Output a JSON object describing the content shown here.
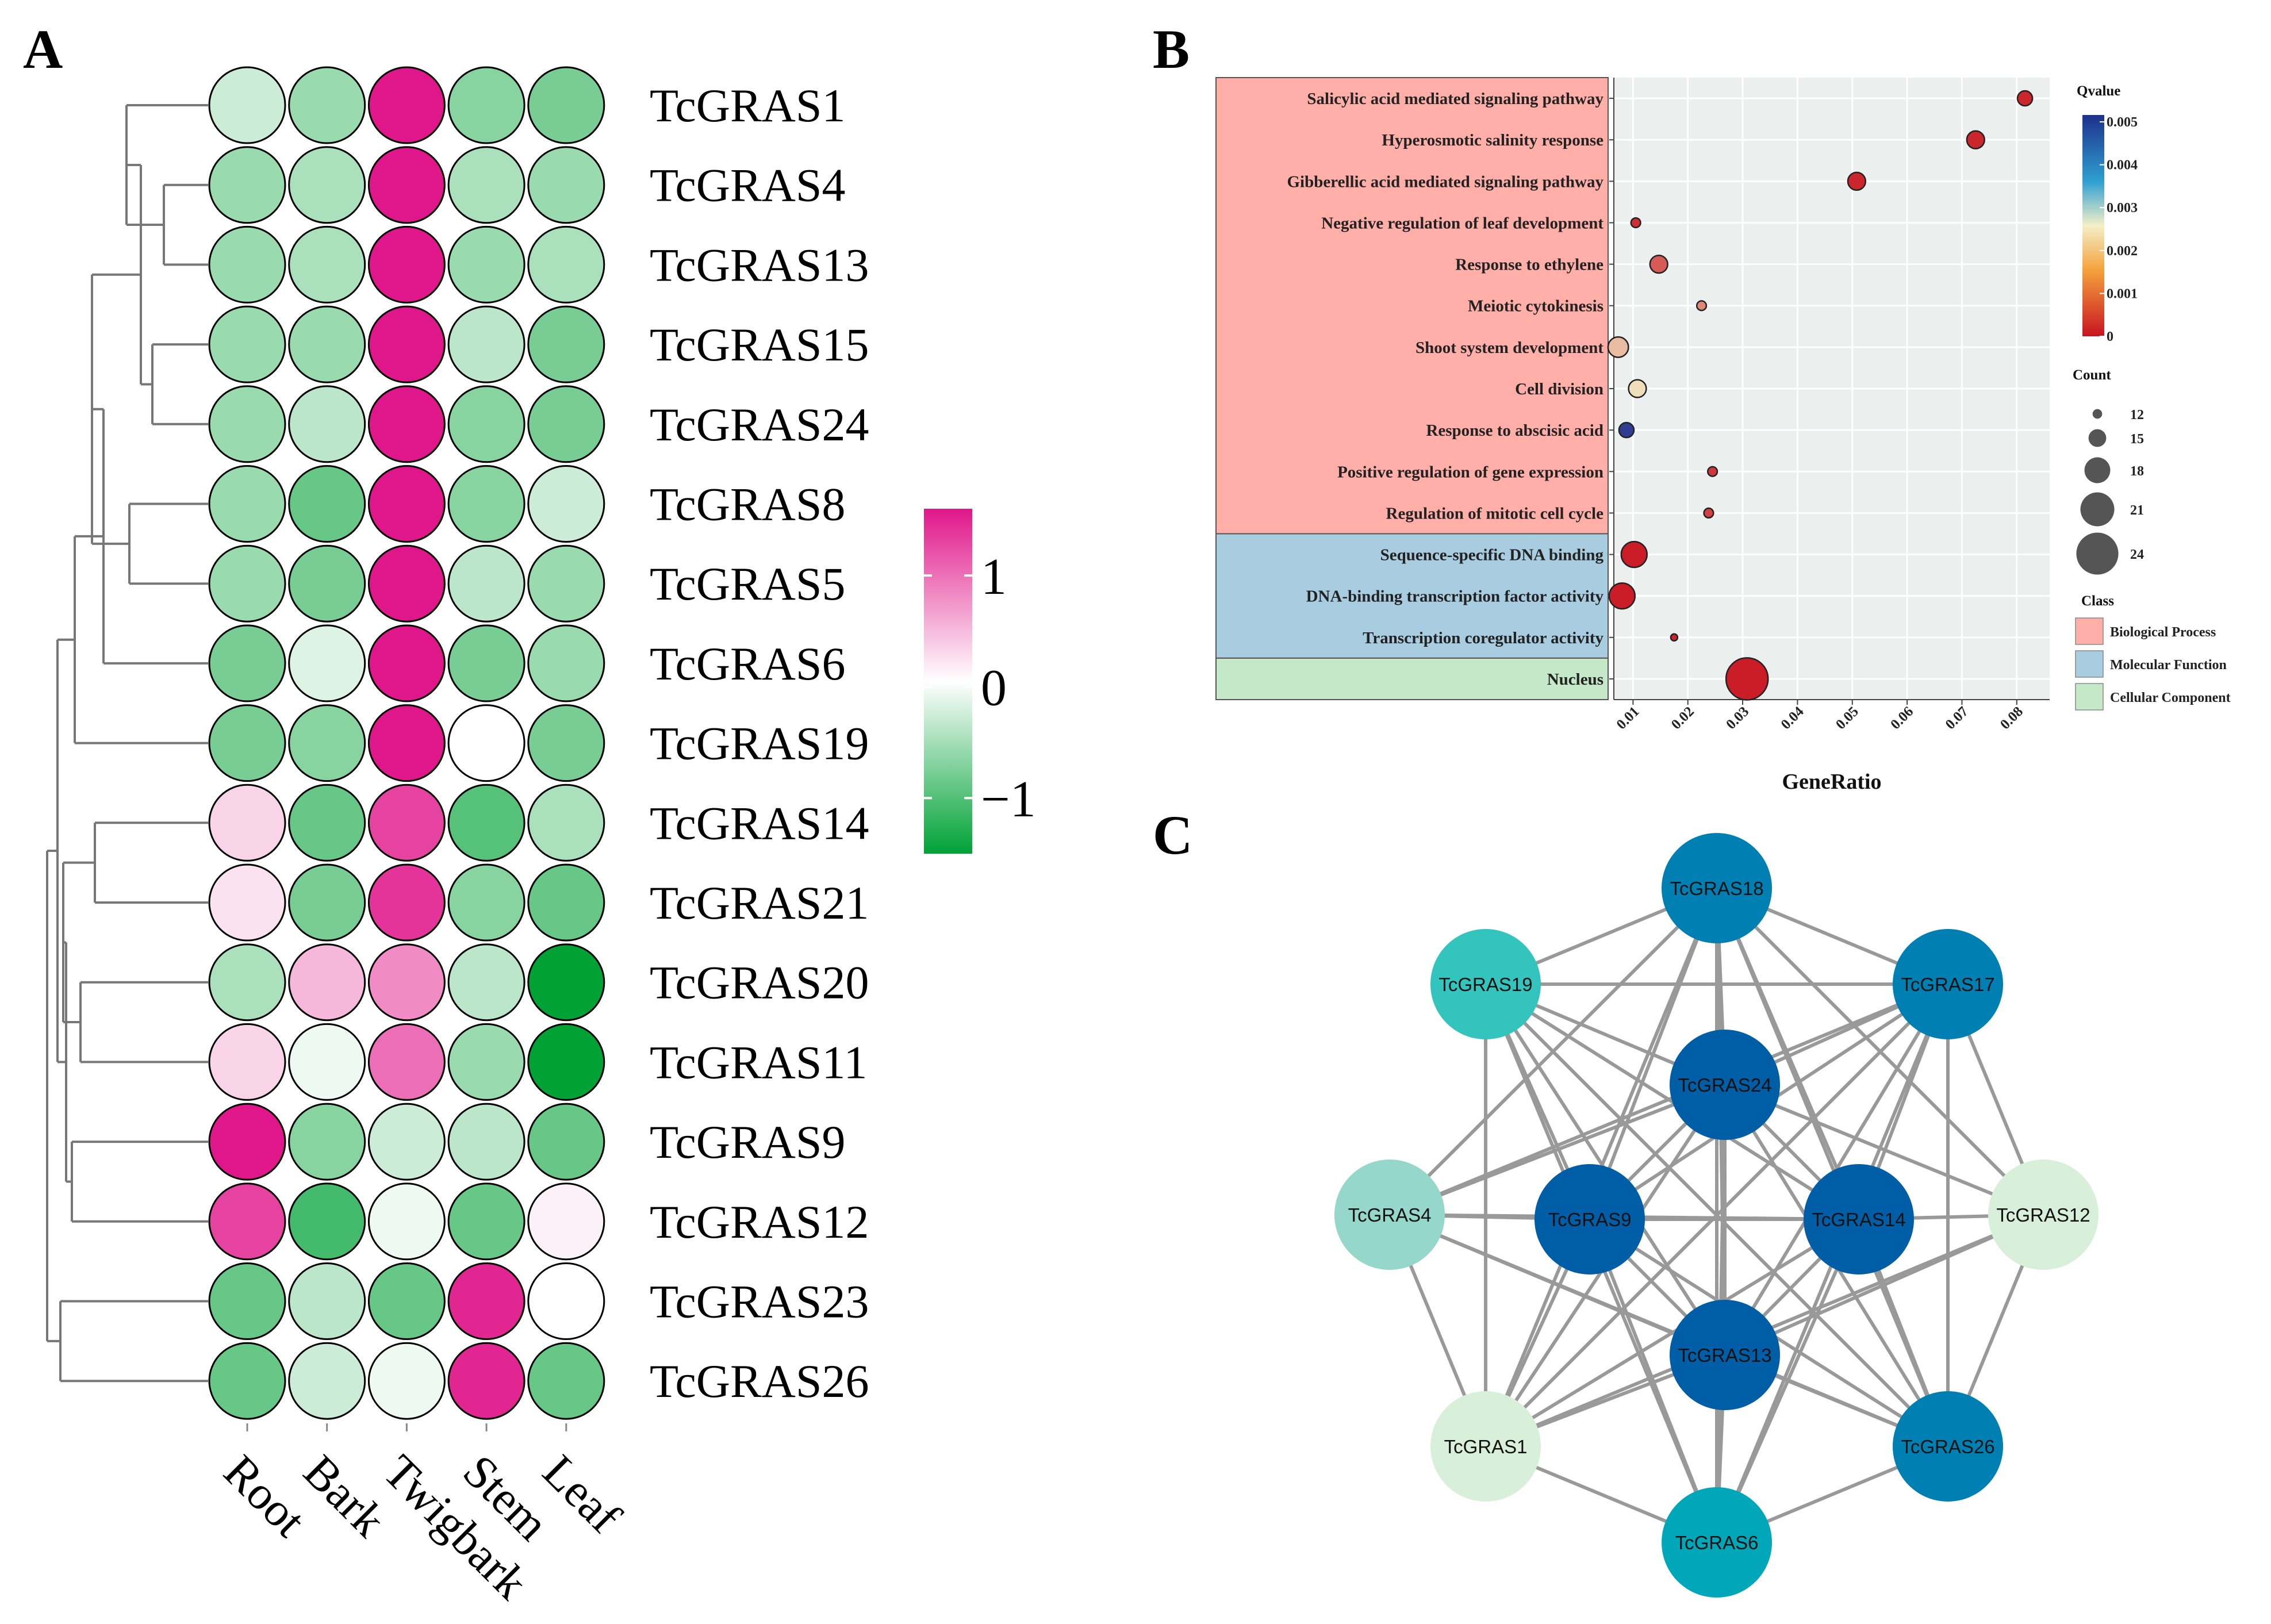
{
  "panel_labels": {
    "a": "A",
    "b": "B",
    "c": "C"
  },
  "chart_data": [
    {
      "panel": "A",
      "type": "heatmap",
      "title": "",
      "rows": [
        "TcGRAS1",
        "TcGRAS4",
        "TcGRAS13",
        "TcGRAS15",
        "TcGRAS24",
        "TcGRAS8",
        "TcGRAS5",
        "TcGRAS6",
        "TcGRAS19",
        "TcGRAS14",
        "TcGRAS21",
        "TcGRAS20",
        "TcGRAS11",
        "TcGRAS9",
        "TcGRAS12",
        "TcGRAS23",
        "TcGRAS26"
      ],
      "columns": [
        "Root",
        "Bark",
        "Twigbark",
        "Stem",
        "Leaf"
      ],
      "values": [
        [
          -0.3,
          -0.6,
          1.6,
          -0.7,
          -0.8
        ],
        [
          -0.6,
          -0.5,
          1.6,
          -0.5,
          -0.6
        ],
        [
          -0.6,
          -0.5,
          1.6,
          -0.6,
          -0.5
        ],
        [
          -0.6,
          -0.6,
          1.6,
          -0.4,
          -0.8
        ],
        [
          -0.6,
          -0.4,
          1.6,
          -0.7,
          -0.8
        ],
        [
          -0.6,
          -0.9,
          1.6,
          -0.7,
          -0.3
        ],
        [
          -0.6,
          -0.8,
          1.6,
          -0.4,
          -0.6
        ],
        [
          -0.8,
          -0.2,
          1.6,
          -0.8,
          -0.6
        ],
        [
          -0.8,
          -0.7,
          1.6,
          0.0,
          -0.8
        ],
        [
          0.3,
          -0.9,
          1.3,
          -1.0,
          -0.5
        ],
        [
          0.2,
          -0.8,
          1.4,
          -0.7,
          -0.9
        ],
        [
          -0.5,
          0.5,
          0.8,
          -0.4,
          -1.6
        ],
        [
          0.3,
          -0.1,
          1.0,
          -0.6,
          -1.6
        ],
        [
          1.6,
          -0.7,
          -0.3,
          -0.4,
          -0.9
        ],
        [
          1.3,
          -1.1,
          -0.1,
          -0.9,
          0.1
        ],
        [
          -0.9,
          -0.4,
          -0.9,
          1.5,
          0.0
        ],
        [
          -0.9,
          -0.3,
          -0.1,
          1.5,
          -0.9
        ]
      ],
      "color_scale": {
        "min": -1.5,
        "max": 1.6,
        "low_color": "#00a236",
        "mid_color": "#ffffff",
        "high_color": "#e0178a"
      },
      "scale_ticks": [
        1,
        0,
        -1
      ],
      "scale_tick_labels": [
        "1",
        "0",
        "−1"
      ],
      "dendrogram": "row clustering"
    },
    {
      "panel": "B",
      "type": "scatter",
      "title": "",
      "xlabel": "GeneRatio",
      "ylabel": "",
      "xlim": [
        0.0065,
        0.086
      ],
      "x_ticks": [
        0.01,
        0.02,
        0.03,
        0.04,
        0.05,
        0.06,
        0.07,
        0.08
      ],
      "x_tick_labels": [
        "0.01",
        "0.02",
        "0.03",
        "0.04",
        "0.05",
        "0.06",
        "0.07",
        "0.08"
      ],
      "terms": [
        {
          "term": "Salicylic acid mediated signaling pathway",
          "gene_ratio": 0.0815,
          "qvalue": 0.0002,
          "count": 14,
          "class": "Biological Process"
        },
        {
          "term": "Hyperosmotic salinity response",
          "gene_ratio": 0.0725,
          "qvalue": 0.0002,
          "count": 15,
          "class": "Biological Process"
        },
        {
          "term": "Gibberellic acid mediated signaling pathway",
          "gene_ratio": 0.0508,
          "qvalue": 0.0002,
          "count": 15,
          "class": "Biological Process"
        },
        {
          "term": "Negative regulation of leaf development",
          "gene_ratio": 0.0105,
          "qvalue": 0.0003,
          "count": 12,
          "class": "Biological Process"
        },
        {
          "term": "Response to ethylene",
          "gene_ratio": 0.0147,
          "qvalue": 0.0008,
          "count": 15,
          "class": "Biological Process"
        },
        {
          "term": "Meiotic cytokinesis",
          "gene_ratio": 0.0225,
          "qvalue": 0.0013,
          "count": 12,
          "class": "Biological Process"
        },
        {
          "term": "Shoot system development",
          "gene_ratio": 0.0073,
          "qvalue": 0.0019,
          "count": 16,
          "class": "Biological Process"
        },
        {
          "term": "Cell division",
          "gene_ratio": 0.0108,
          "qvalue": 0.0023,
          "count": 15,
          "class": "Biological Process"
        },
        {
          "term": "Response to abscisic acid",
          "gene_ratio": 0.0088,
          "qvalue": 0.0048,
          "count": 14,
          "class": "Biological Process"
        },
        {
          "term": "Positive regulation of gene expression",
          "gene_ratio": 0.0245,
          "qvalue": 0.0004,
          "count": 12,
          "class": "Biological Process"
        },
        {
          "term": "Regulation of mitotic cell cycle",
          "gene_ratio": 0.0238,
          "qvalue": 0.0005,
          "count": 12,
          "class": "Biological Process"
        },
        {
          "term": "Sequence-specific DNA binding",
          "gene_ratio": 0.0102,
          "qvalue": 0.0001,
          "count": 18,
          "class": "Molecular Function"
        },
        {
          "term": "DNA-binding transcription factor activity",
          "gene_ratio": 0.008,
          "qvalue": 0.0001,
          "count": 18,
          "class": "Molecular Function"
        },
        {
          "term": "Transcription coregulator activity",
          "gene_ratio": 0.0175,
          "qvalue": 0.0002,
          "count": 11,
          "class": "Molecular Function"
        },
        {
          "term": "Nucleus",
          "gene_ratio": 0.0308,
          "qvalue": 0.0001,
          "count": 24,
          "class": "Cellular Component"
        }
      ],
      "class_groups": [
        {
          "name": "Biological Process",
          "color": "#ffafa8",
          "first_term": 0,
          "last_term": 10
        },
        {
          "name": "Molecular Function",
          "color": "#a8cde0",
          "first_term": 11,
          "last_term": 13
        },
        {
          "name": "Cellular Component",
          "color": "#c5e8c8",
          "first_term": 14,
          "last_term": 14
        }
      ],
      "qvalue_legend": {
        "title": "Qvalue",
        "ticks": [
          0.005,
          0.004,
          0.003,
          0.002,
          0.001,
          0
        ],
        "tick_labels": [
          "0.005",
          "0.004",
          "0.003",
          "0.002",
          "0.001",
          "0"
        ],
        "low_color": "#c81420",
        "mid_color": "#f4f0c8",
        "high_color": "#1e2f8c"
      },
      "count_legend": {
        "title": "Count",
        "values": [
          12,
          15,
          18,
          21,
          24
        ],
        "labels": [
          "12",
          "15",
          "18",
          "21",
          "24"
        ]
      },
      "class_legend": {
        "title": "Class"
      },
      "background_color": "#ebf0ef"
    },
    {
      "panel": "C",
      "type": "network",
      "nodes": [
        {
          "id": "TcGRAS18",
          "color": "#0080b2"
        },
        {
          "id": "TcGRAS19",
          "color": "#33c5bd"
        },
        {
          "id": "TcGRAS17",
          "color": "#0080b2"
        },
        {
          "id": "TcGRAS24",
          "color": "#005ea7"
        },
        {
          "id": "TcGRAS4",
          "color": "#96d7cb"
        },
        {
          "id": "TcGRAS9",
          "color": "#005ea7"
        },
        {
          "id": "TcGRAS14",
          "color": "#005ea7"
        },
        {
          "id": "TcGRAS12",
          "color": "#d8efd9"
        },
        {
          "id": "TcGRAS13",
          "color": "#005ea7"
        },
        {
          "id": "TcGRAS1",
          "color": "#d8efd9"
        },
        {
          "id": "TcGRAS26",
          "color": "#0080b2"
        },
        {
          "id": "TcGRAS6",
          "color": "#00a7b8"
        }
      ],
      "edges": [
        [
          "TcGRAS18",
          "TcGRAS19"
        ],
        [
          "TcGRAS18",
          "TcGRAS17"
        ],
        [
          "TcGRAS18",
          "TcGRAS24"
        ],
        [
          "TcGRAS18",
          "TcGRAS9"
        ],
        [
          "TcGRAS18",
          "TcGRAS14"
        ],
        [
          "TcGRAS18",
          "TcGRAS13"
        ],
        [
          "TcGRAS18",
          "TcGRAS4"
        ],
        [
          "TcGRAS18",
          "TcGRAS12"
        ],
        [
          "TcGRAS18",
          "TcGRAS1"
        ],
        [
          "TcGRAS18",
          "TcGRAS26"
        ],
        [
          "TcGRAS18",
          "TcGRAS6"
        ],
        [
          "TcGRAS19",
          "TcGRAS24"
        ],
        [
          "TcGRAS19",
          "TcGRAS9"
        ],
        [
          "TcGRAS19",
          "TcGRAS14"
        ],
        [
          "TcGRAS19",
          "TcGRAS13"
        ],
        [
          "TcGRAS19",
          "TcGRAS6"
        ],
        [
          "TcGRAS19",
          "TcGRAS26"
        ],
        [
          "TcGRAS19",
          "TcGRAS17"
        ],
        [
          "TcGRAS19",
          "TcGRAS1"
        ],
        [
          "TcGRAS17",
          "TcGRAS24"
        ],
        [
          "TcGRAS17",
          "TcGRAS9"
        ],
        [
          "TcGRAS17",
          "TcGRAS14"
        ],
        [
          "TcGRAS17",
          "TcGRAS13"
        ],
        [
          "TcGRAS17",
          "TcGRAS12"
        ],
        [
          "TcGRAS17",
          "TcGRAS1"
        ],
        [
          "TcGRAS17",
          "TcGRAS6"
        ],
        [
          "TcGRAS17",
          "TcGRAS4"
        ],
        [
          "TcGRAS17",
          "TcGRAS26"
        ],
        [
          "TcGRAS24",
          "TcGRAS9"
        ],
        [
          "TcGRAS24",
          "TcGRAS14"
        ],
        [
          "TcGRAS24",
          "TcGRAS13"
        ],
        [
          "TcGRAS24",
          "TcGRAS4"
        ],
        [
          "TcGRAS24",
          "TcGRAS12"
        ],
        [
          "TcGRAS24",
          "TcGRAS1"
        ],
        [
          "TcGRAS24",
          "TcGRAS26"
        ],
        [
          "TcGRAS24",
          "TcGRAS6"
        ],
        [
          "TcGRAS9",
          "TcGRAS14"
        ],
        [
          "TcGRAS9",
          "TcGRAS13"
        ],
        [
          "TcGRAS9",
          "TcGRAS4"
        ],
        [
          "TcGRAS9",
          "TcGRAS1"
        ],
        [
          "TcGRAS9",
          "TcGRAS26"
        ],
        [
          "TcGRAS9",
          "TcGRAS6"
        ],
        [
          "TcGRAS14",
          "TcGRAS13"
        ],
        [
          "TcGRAS14",
          "TcGRAS12"
        ],
        [
          "TcGRAS14",
          "TcGRAS26"
        ],
        [
          "TcGRAS14",
          "TcGRAS6"
        ],
        [
          "TcGRAS14",
          "TcGRAS1"
        ],
        [
          "TcGRAS14",
          "TcGRAS4"
        ],
        [
          "TcGRAS13",
          "TcGRAS4"
        ],
        [
          "TcGRAS13",
          "TcGRAS1"
        ],
        [
          "TcGRAS13",
          "TcGRAS26"
        ],
        [
          "TcGRAS13",
          "TcGRAS6"
        ],
        [
          "TcGRAS13",
          "TcGRAS12"
        ],
        [
          "TcGRAS6",
          "TcGRAS1"
        ],
        [
          "TcGRAS6",
          "TcGRAS26"
        ],
        [
          "TcGRAS4",
          "TcGRAS1"
        ],
        [
          "TcGRAS12",
          "TcGRAS26"
        ],
        [
          "TcGRAS4",
          "TcGRAS26"
        ],
        [
          "TcGRAS12",
          "TcGRAS1"
        ]
      ],
      "edge_color": "#999999"
    }
  ]
}
